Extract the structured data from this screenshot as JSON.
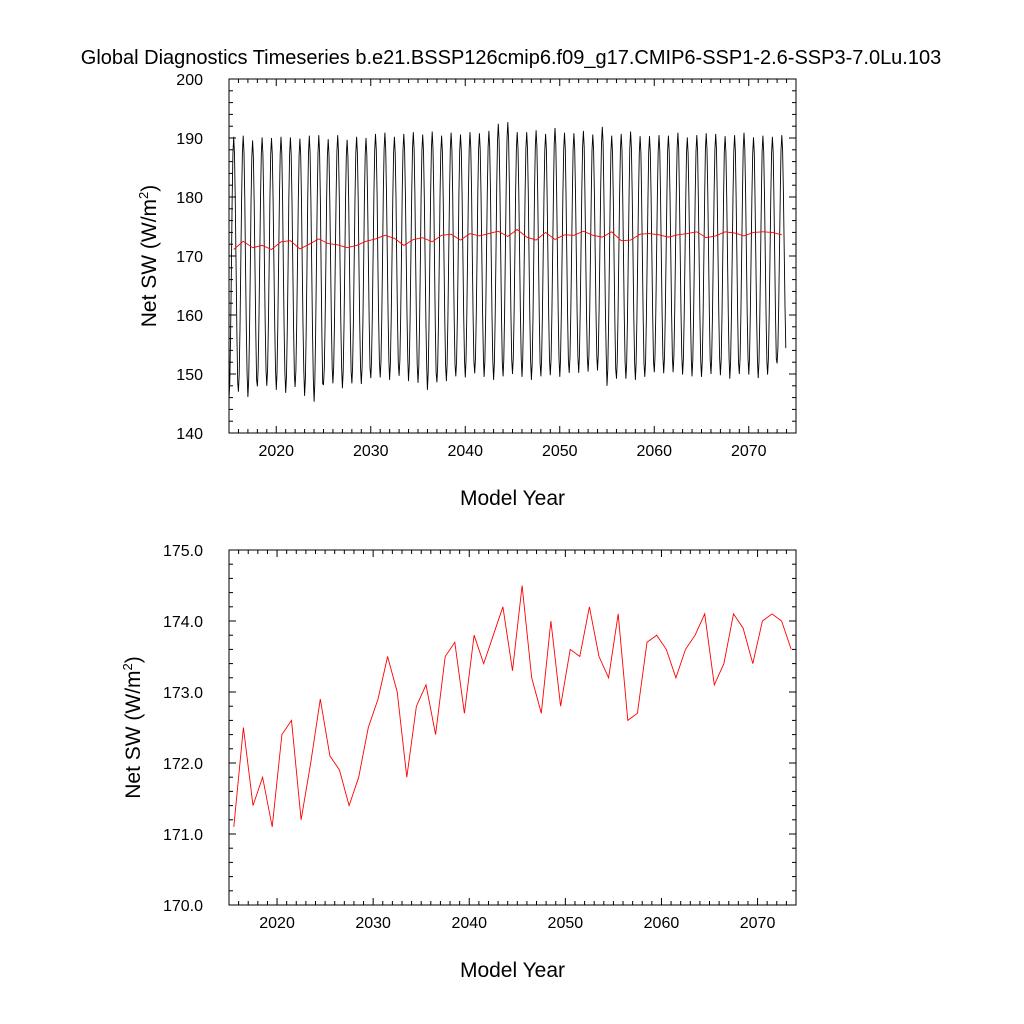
{
  "title": "Global Diagnostics Timeseries b.e21.BSSP126cmip6.f09_g17.CMIP6-SSP1-2.6-SSP3-7.0Lu.103",
  "chart_data": [
    {
      "type": "line",
      "xlabel": "Model Year",
      "ylabel_main": "Net SW (W/m",
      "ylabel_sup": "2",
      "ylabel_close": ")",
      "xlim": [
        2015,
        2075
      ],
      "ylim": [
        140,
        200
      ],
      "x_ticks": [
        "2020",
        "2030",
        "2040",
        "2050",
        "2060",
        "2070"
      ],
      "y_ticks": [
        "140",
        "150",
        "160",
        "170",
        "180",
        "190",
        "200"
      ],
      "grid": false,
      "series": [
        {
          "color": "#000000",
          "kind": "monthly",
          "start_year": 2015,
          "months_per_year": 12,
          "annual_max": [
            190.2,
            190.4,
            189.6,
            190.1,
            190.0,
            190.2,
            190.1,
            189.9,
            190.4,
            190.5,
            189.8,
            190.5,
            189.7,
            190.2,
            190.0,
            190.7,
            190.9,
            190.2,
            190.7,
            191.0,
            190.6,
            191.1,
            190.4,
            190.9,
            190.6,
            191.0,
            190.8,
            191.2,
            192.4,
            192.7,
            191.0,
            191.0,
            191.3,
            190.7,
            191.7,
            190.9,
            190.8,
            191.2,
            190.6,
            191.9,
            190.4,
            190.7,
            191.1,
            190.3,
            190.3,
            190.5,
            190.4,
            190.9,
            190.1,
            190.5,
            190.8,
            190.7,
            190.3,
            190.5,
            190.9,
            190.1,
            190.4,
            190.2,
            190.5
          ],
          "annual_min": [
            145.6,
            147.0,
            146.1,
            147.9,
            148.0,
            147.3,
            146.8,
            147.8,
            146.3,
            145.3,
            148.2,
            148.4,
            147.6,
            148.4,
            148.3,
            149.3,
            149.4,
            149.0,
            149.7,
            148.8,
            148.5,
            147.3,
            148.6,
            148.8,
            149.6,
            149.4,
            150.1,
            149.5,
            149.0,
            149.6,
            150.0,
            149.5,
            149.0,
            149.6,
            149.8,
            149.5,
            150.2,
            150.2,
            150.4,
            150.6,
            148.0,
            149.2,
            149.2,
            149.0,
            149.5,
            150.3,
            150.1,
            150.3,
            149.9,
            149.6,
            149.5,
            150.0,
            149.8,
            149.2,
            150.0,
            149.9,
            149.3,
            149.9,
            151.8
          ]
        },
        {
          "color": "#ff0000",
          "kind": "annual",
          "x": [
            2015.5,
            2016.5,
            2017.5,
            2018.5,
            2019.5,
            2020.5,
            2021.5,
            2022.5,
            2023.5,
            2024.5,
            2025.5,
            2026.5,
            2027.5,
            2028.5,
            2029.5,
            2030.5,
            2031.5,
            2032.5,
            2033.5,
            2034.5,
            2035.5,
            2036.5,
            2037.5,
            2038.5,
            2039.5,
            2040.5,
            2041.5,
            2042.5,
            2043.5,
            2044.5,
            2045.5,
            2046.5,
            2047.5,
            2048.5,
            2049.5,
            2050.5,
            2051.5,
            2052.5,
            2053.5,
            2054.5,
            2055.5,
            2056.5,
            2057.5,
            2058.5,
            2059.5,
            2060.5,
            2061.5,
            2062.5,
            2063.5,
            2064.5,
            2065.5,
            2066.5,
            2067.5,
            2068.5,
            2069.5,
            2070.5,
            2071.5,
            2072.5,
            2073.5
          ],
          "values": [
            171.1,
            172.5,
            171.4,
            171.8,
            171.1,
            172.4,
            172.6,
            171.2,
            172.0,
            172.9,
            172.1,
            171.9,
            171.4,
            171.8,
            172.5,
            172.9,
            173.5,
            173.0,
            171.8,
            172.8,
            173.1,
            172.4,
            173.5,
            173.7,
            172.7,
            173.8,
            173.4,
            173.8,
            174.2,
            173.3,
            174.5,
            173.2,
            172.7,
            174.0,
            172.8,
            173.6,
            173.5,
            174.2,
            173.5,
            173.2,
            174.1,
            172.6,
            172.7,
            173.7,
            173.8,
            173.6,
            173.2,
            173.6,
            173.8,
            174.1,
            173.1,
            173.4,
            174.1,
            173.9,
            173.4,
            174.0,
            174.1,
            174.0,
            173.6
          ]
        }
      ]
    },
    {
      "type": "line",
      "xlabel": "Model Year",
      "ylabel_main": "Net SW (W/m",
      "ylabel_sup": "2",
      "ylabel_close": ")",
      "xlim": [
        2015,
        2074
      ],
      "ylim": [
        170.0,
        175.0
      ],
      "x_ticks": [
        "2020",
        "2030",
        "2040",
        "2050",
        "2060",
        "2070"
      ],
      "y_ticks": [
        "170.0",
        "171.0",
        "172.0",
        "173.0",
        "174.0",
        "175.0"
      ],
      "grid": false,
      "series": [
        {
          "color": "#ff0000",
          "kind": "annual",
          "x": [
            2015.5,
            2016.5,
            2017.5,
            2018.5,
            2019.5,
            2020.5,
            2021.5,
            2022.5,
            2023.5,
            2024.5,
            2025.5,
            2026.5,
            2027.5,
            2028.5,
            2029.5,
            2030.5,
            2031.5,
            2032.5,
            2033.5,
            2034.5,
            2035.5,
            2036.5,
            2037.5,
            2038.5,
            2039.5,
            2040.5,
            2041.5,
            2042.5,
            2043.5,
            2044.5,
            2045.5,
            2046.5,
            2047.5,
            2048.5,
            2049.5,
            2050.5,
            2051.5,
            2052.5,
            2053.5,
            2054.5,
            2055.5,
            2056.5,
            2057.5,
            2058.5,
            2059.5,
            2060.5,
            2061.5,
            2062.5,
            2063.5,
            2064.5,
            2065.5,
            2066.5,
            2067.5,
            2068.5,
            2069.5,
            2070.5,
            2071.5,
            2072.5,
            2073.5
          ],
          "values": [
            171.1,
            172.5,
            171.4,
            171.8,
            171.1,
            172.4,
            172.6,
            171.2,
            172.0,
            172.9,
            172.1,
            171.9,
            171.4,
            171.8,
            172.5,
            172.9,
            173.5,
            173.0,
            171.8,
            172.8,
            173.1,
            172.4,
            173.5,
            173.7,
            172.7,
            173.8,
            173.4,
            173.8,
            174.2,
            173.3,
            174.5,
            173.2,
            172.7,
            174.0,
            172.8,
            173.6,
            173.5,
            174.2,
            173.5,
            173.2,
            174.1,
            172.6,
            172.7,
            173.7,
            173.8,
            173.6,
            173.2,
            173.6,
            173.8,
            174.1,
            173.1,
            173.4,
            174.1,
            173.9,
            173.4,
            174.0,
            174.1,
            174.0,
            173.6
          ]
        }
      ]
    }
  ]
}
